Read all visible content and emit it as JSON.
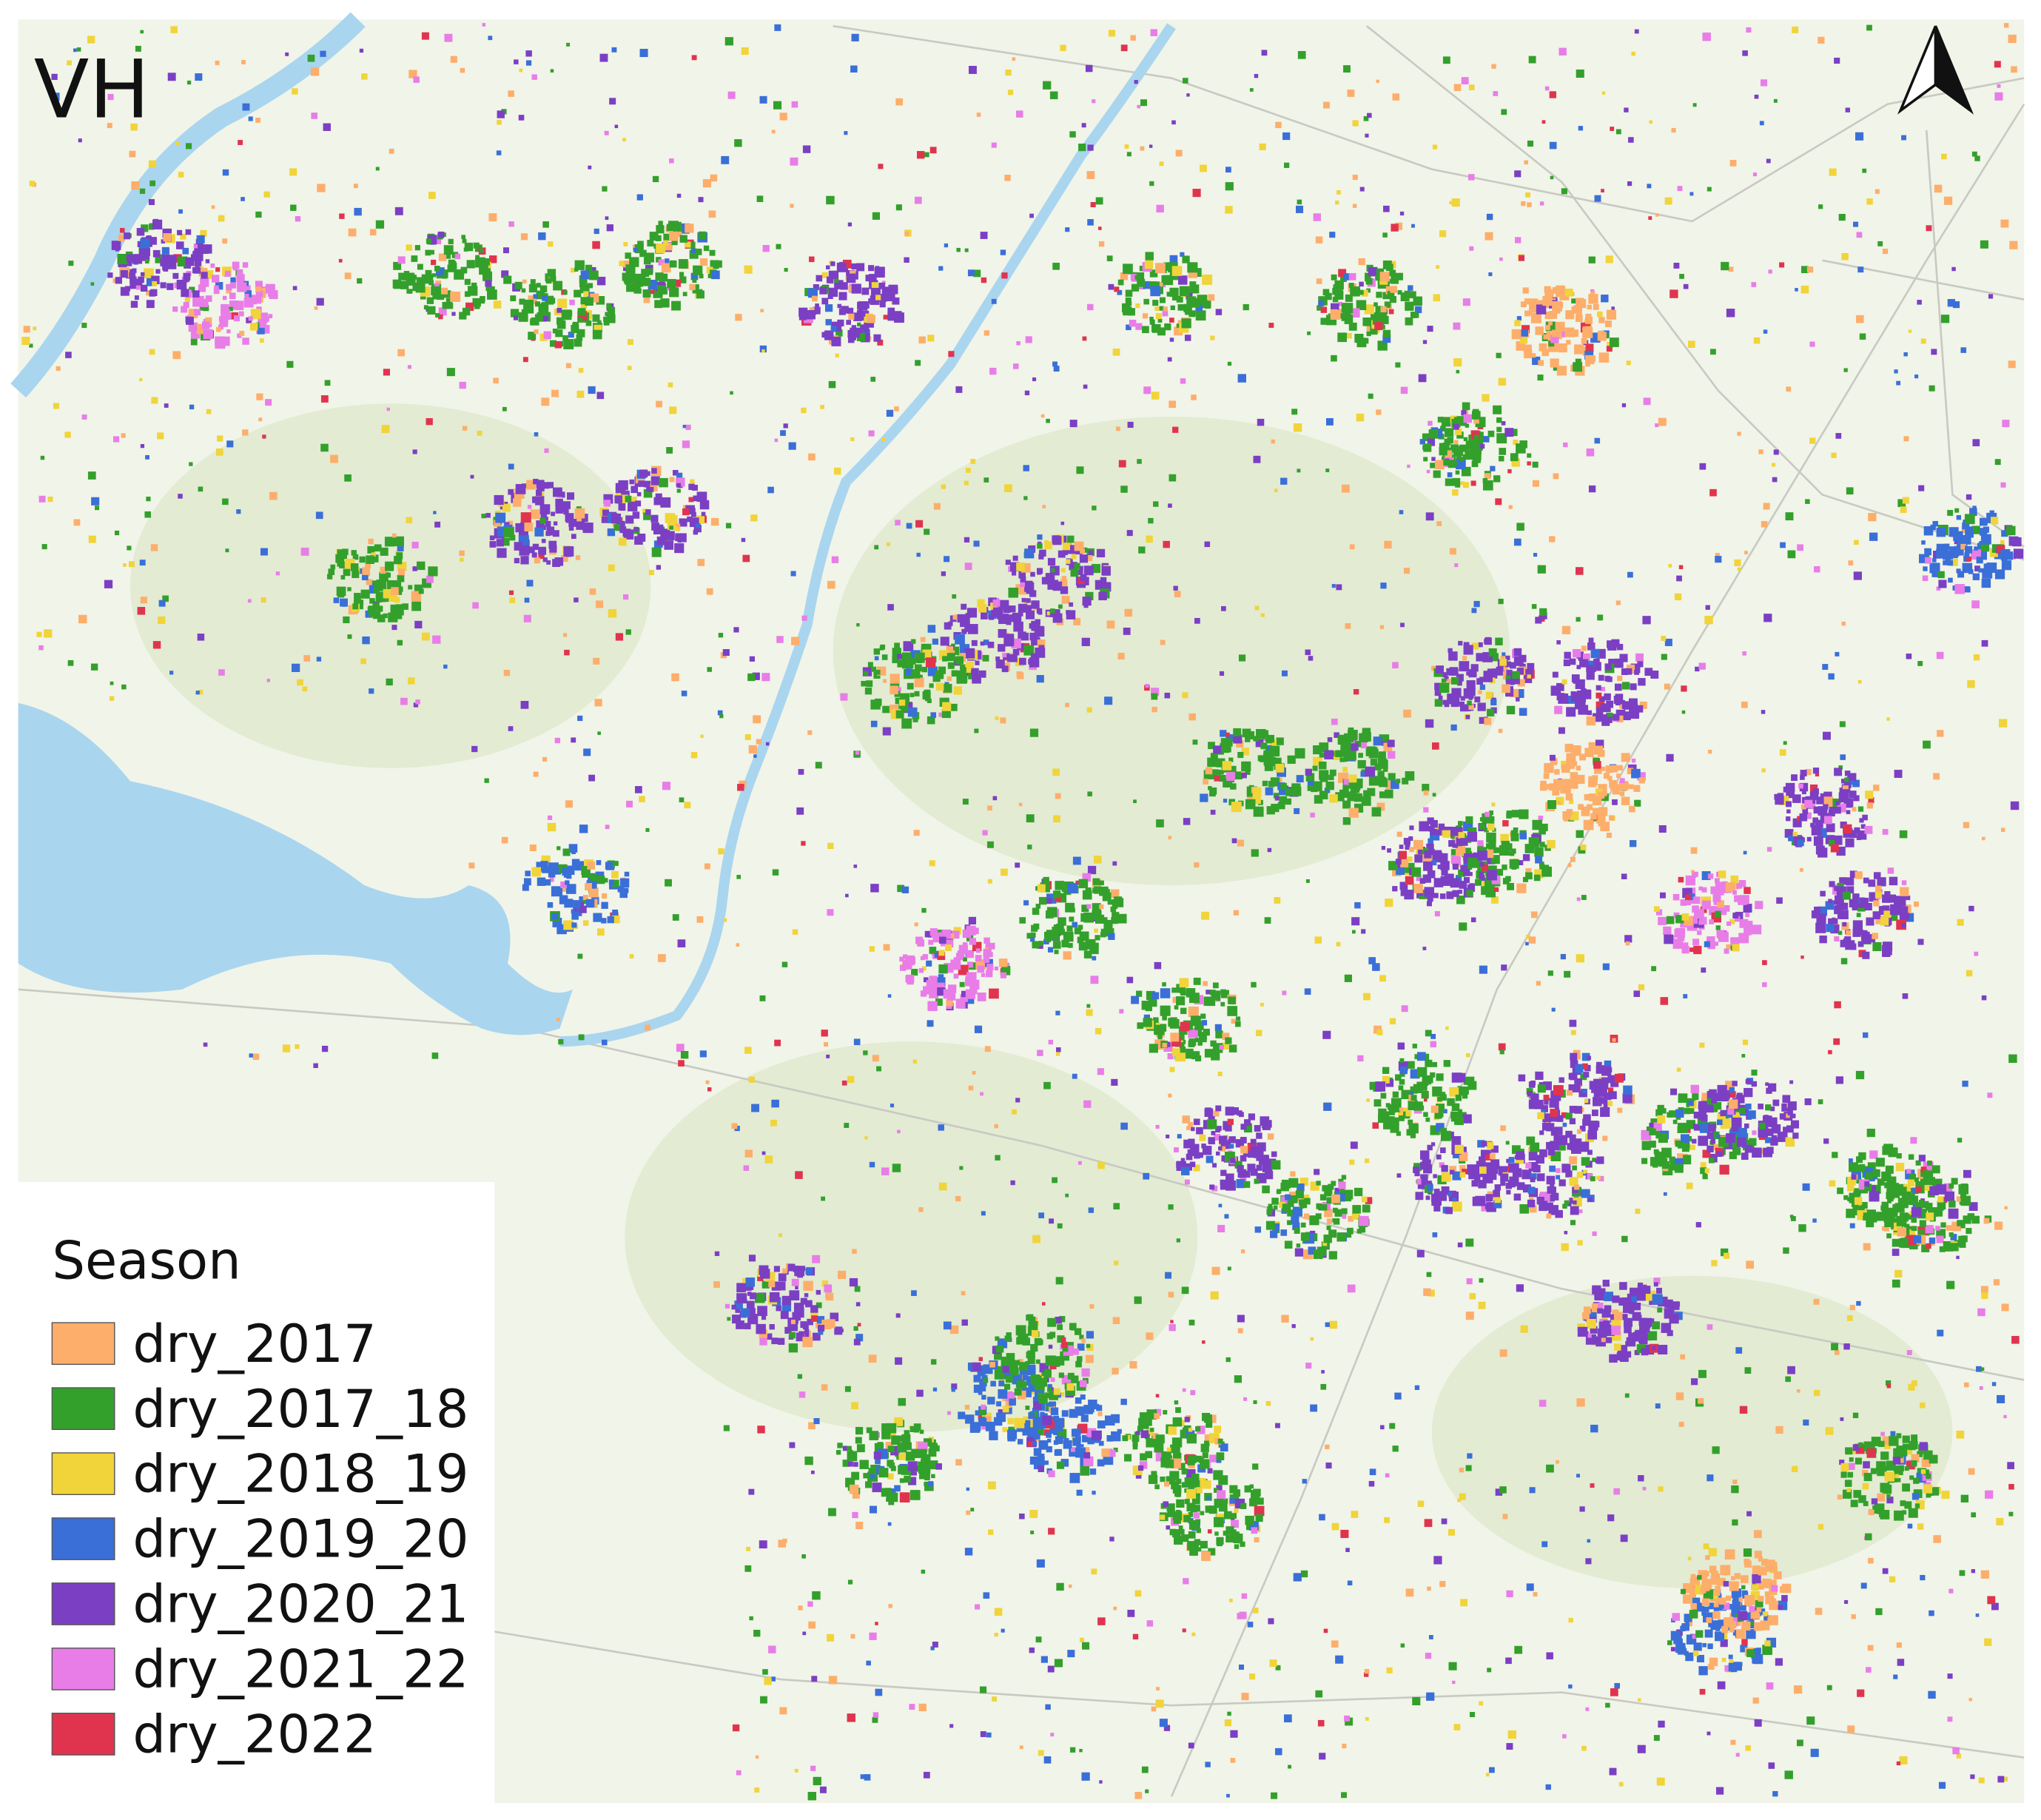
{
  "title": "VH",
  "legend": {
    "title": "Season",
    "items": [
      {
        "label": "dry_2017",
        "color": "#fdae6b"
      },
      {
        "label": "dry_2017_18",
        "color": "#33a02c"
      },
      {
        "label": "dry_2018_19",
        "color": "#f0d43a"
      },
      {
        "label": "dry_2019_20",
        "color": "#3a6fd8"
      },
      {
        "label": "dry_2020_21",
        "color": "#7b3fc4"
      },
      {
        "label": "dry_2021_22",
        "color": "#e87de8"
      },
      {
        "label": "dry_2022",
        "color": "#e0344e"
      }
    ]
  }
}
